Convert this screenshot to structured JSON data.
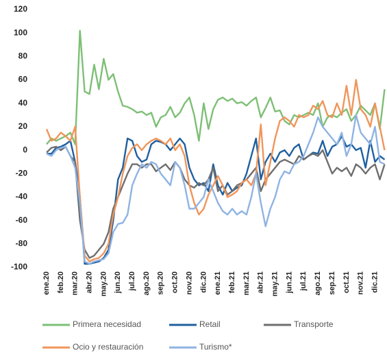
{
  "chart_data": {
    "type": "line",
    "categories": [
      "ene.20",
      null,
      null,
      "feb.20",
      null,
      null,
      "mar.20",
      null,
      null,
      "abr.20",
      null,
      null,
      "may.20",
      null,
      null,
      "jun.20",
      null,
      null,
      "jul.20",
      null,
      null,
      "ago.20",
      null,
      null,
      "sep.20",
      null,
      null,
      "oct.20",
      null,
      null,
      "nov.20",
      null,
      null,
      "dic.20",
      null,
      null,
      "ene.21",
      null,
      null,
      "feb.21",
      null,
      null,
      "mar.21",
      null,
      null,
      "abr.21",
      null,
      null,
      "may.21",
      null,
      null,
      "jun.21",
      null,
      null,
      "jul.21",
      null,
      null,
      "ago.21",
      null,
      null,
      "sep.21",
      null,
      null,
      "oct.21",
      null,
      null,
      "nov.21",
      null,
      null,
      "dic.21",
      null,
      null
    ],
    "series": [
      {
        "name": "Primera necesidad",
        "color": "#7dbf75",
        "values": [
          5,
          10,
          8,
          10,
          12,
          15,
          5,
          102,
          50,
          48,
          73,
          52,
          78,
          60,
          65,
          50,
          38,
          37,
          35,
          32,
          33,
          30,
          32,
          20,
          28,
          30,
          37,
          28,
          32,
          40,
          45,
          30,
          8,
          40,
          18,
          35,
          43,
          45,
          42,
          44,
          40,
          41,
          38,
          42,
          45,
          28,
          36,
          45,
          33,
          34,
          25,
          22,
          30,
          28,
          30,
          32,
          30,
          40,
          20,
          28,
          30,
          28,
          32,
          35,
          25,
          30,
          38,
          34,
          30,
          40,
          18,
          52
        ]
      },
      {
        "name": "Retail",
        "color": "#1f5f9f",
        "values": [
          -3,
          -3,
          2,
          3,
          5,
          8,
          -10,
          -40,
          -97,
          -97,
          -96,
          -95,
          -92,
          -85,
          -60,
          -25,
          -15,
          10,
          8,
          -5,
          -10,
          -8,
          5,
          8,
          7,
          5,
          0,
          5,
          10,
          5,
          -15,
          -25,
          -30,
          -28,
          -35,
          -12,
          -30,
          -38,
          -28,
          -35,
          -32,
          -30,
          -20,
          -5,
          10,
          -25,
          -10,
          -3,
          -10,
          -2,
          0,
          -5,
          2,
          5,
          -8,
          -5,
          -2,
          -3,
          8,
          -5,
          3,
          5,
          12,
          3,
          5,
          0,
          2,
          -15,
          8,
          -10,
          -5,
          -8
        ]
      },
      {
        "name": "Transporte",
        "color": "#6e6e6e",
        "values": [
          -2,
          2,
          3,
          0,
          3,
          -5,
          -10,
          -60,
          -85,
          -92,
          -90,
          -85,
          -80,
          -70,
          -50,
          -40,
          -30,
          -20,
          -12,
          -12,
          -15,
          -12,
          -12,
          -18,
          -15,
          -12,
          -17,
          -10,
          -15,
          -25,
          -30,
          -32,
          -28,
          -30,
          -25,
          -15,
          -35,
          -30,
          -38,
          -35,
          -30,
          -28,
          -25,
          -20,
          -15,
          -35,
          -25,
          -20,
          -15,
          -10,
          -8,
          -10,
          -12,
          -5,
          -8,
          -5,
          -3,
          -5,
          0,
          -10,
          -20,
          -15,
          -18,
          -15,
          -22,
          -12,
          -15,
          -20,
          -15,
          -12,
          -25,
          -12
        ]
      },
      {
        "name": "Ocio y restauración",
        "color": "#f0955a",
        "values": [
          18,
          8,
          10,
          15,
          12,
          8,
          20,
          -40,
          -90,
          -95,
          -93,
          -92,
          -88,
          -80,
          -55,
          -40,
          -20,
          -5,
          2,
          5,
          0,
          5,
          8,
          10,
          8,
          5,
          10,
          0,
          5,
          -5,
          -30,
          -45,
          -55,
          -50,
          -38,
          -30,
          -22,
          -30,
          -40,
          -38,
          -35,
          -28,
          -25,
          -30,
          -20,
          22,
          -30,
          -10,
          10,
          25,
          28,
          25,
          20,
          30,
          28,
          30,
          38,
          35,
          42,
          30,
          28,
          40,
          30,
          55,
          30,
          60,
          35,
          30,
          20,
          40,
          20,
          0
        ]
      },
      {
        "name": "Turismo*",
        "color": "#8fb3e3",
        "values": [
          -3,
          -5,
          0,
          2,
          3,
          -5,
          -15,
          -45,
          -95,
          -97,
          -95,
          -94,
          -93,
          -88,
          -70,
          -63,
          -62,
          -55,
          -30,
          -20,
          -12,
          -15,
          -10,
          -12,
          -20,
          -25,
          -30,
          -10,
          -15,
          -30,
          -50,
          -50,
          -45,
          -40,
          -25,
          -35,
          -45,
          -52,
          -55,
          -50,
          -55,
          -52,
          -55,
          -40,
          -20,
          -45,
          -65,
          -50,
          -40,
          -25,
          -18,
          -20,
          -12,
          -10,
          -5,
          5,
          15,
          28,
          20,
          15,
          10,
          5,
          15,
          -5,
          5,
          30,
          15,
          10,
          5,
          20,
          -10,
          -12
        ]
      }
    ],
    "ylim": [
      -100,
      120
    ],
    "yticks": [
      -100,
      -80,
      -60,
      -40,
      -20,
      0,
      20,
      40,
      60,
      80,
      100,
      120
    ]
  }
}
